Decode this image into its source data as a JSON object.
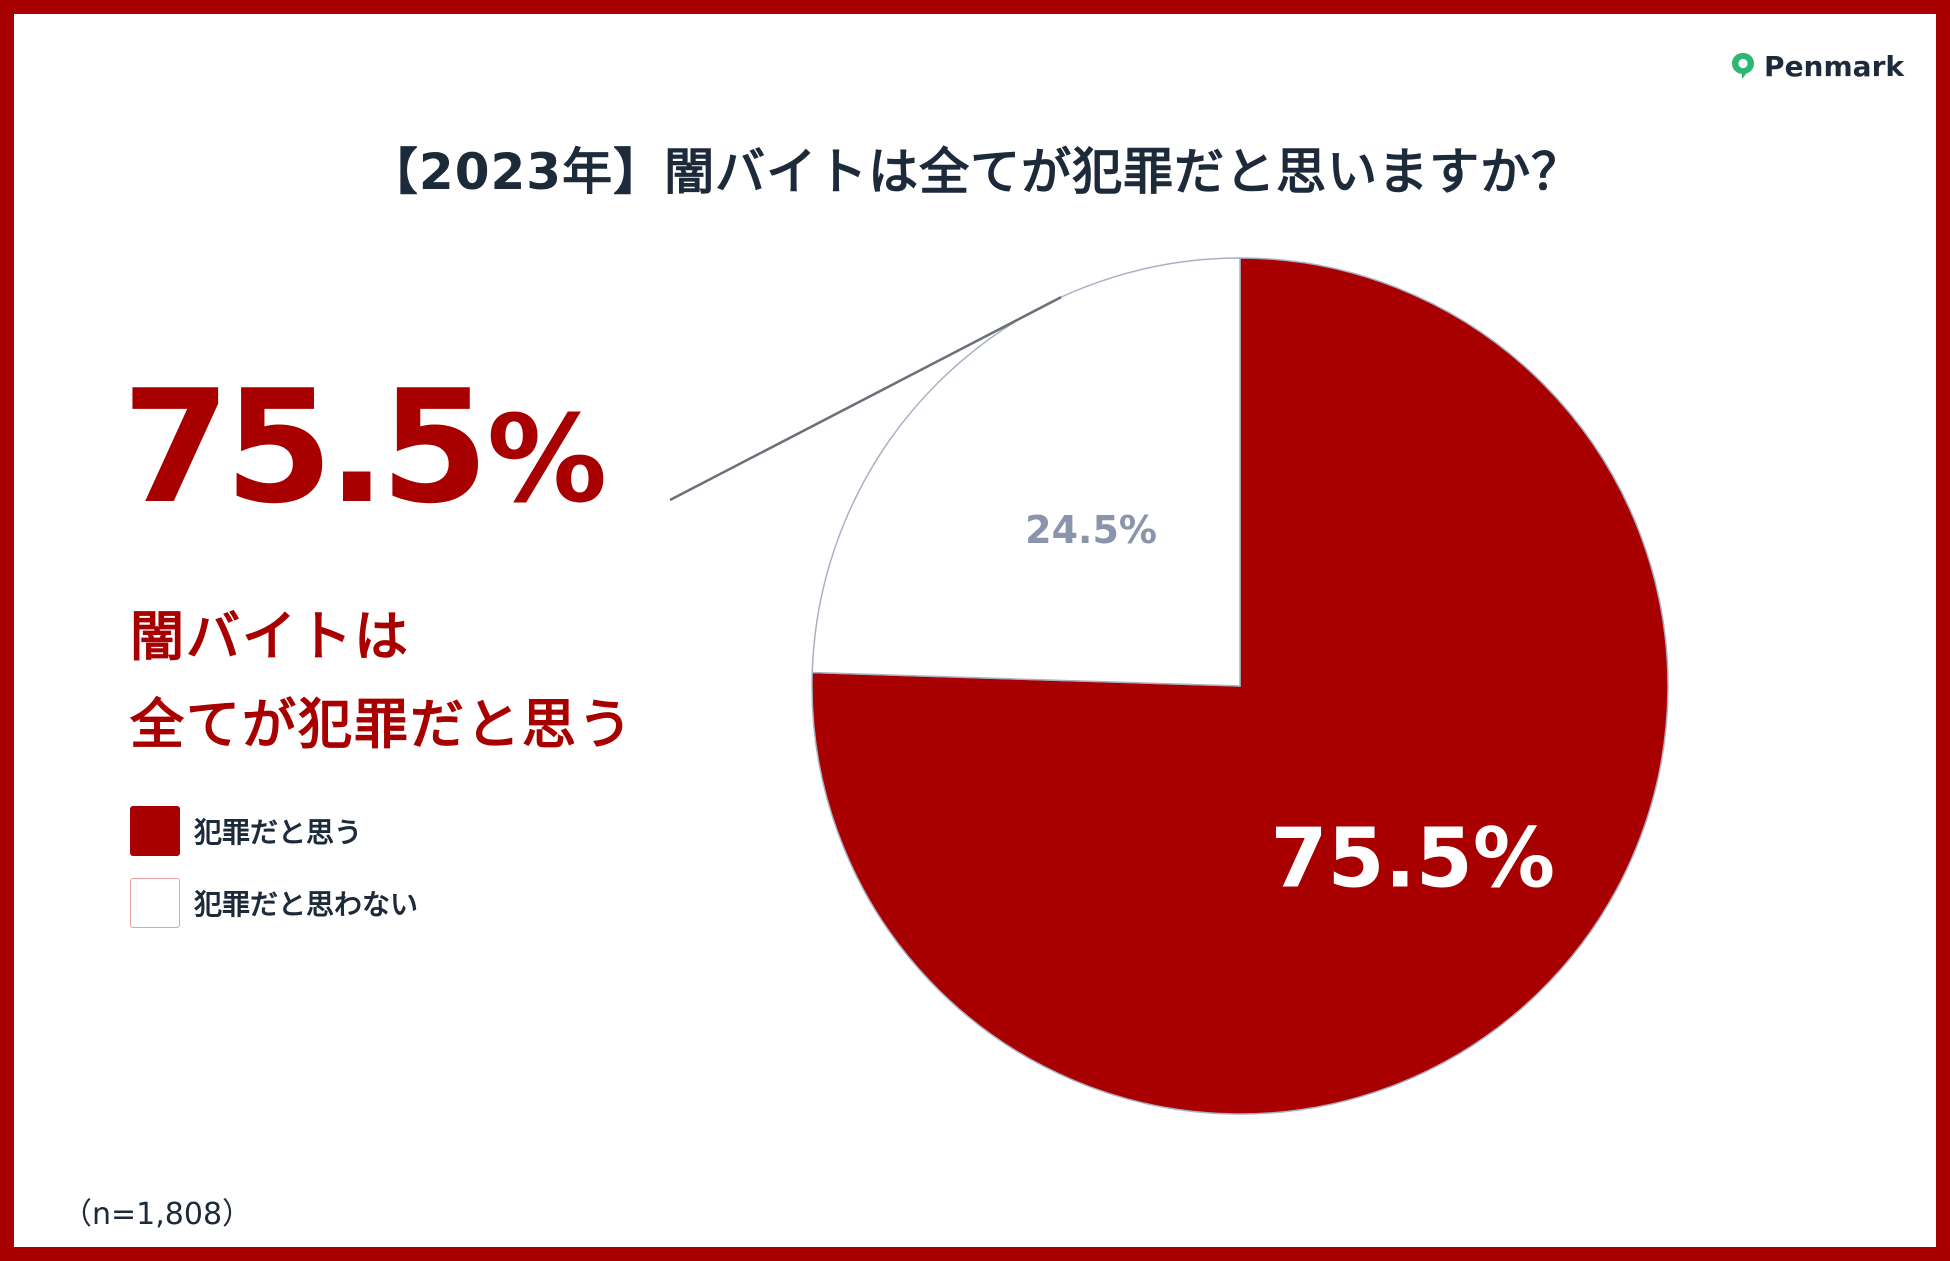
{
  "brand": {
    "name": "Penmark",
    "accent": "#2bb673"
  },
  "title": "【2023年】闇バイトは全てが犯罪だと思いますか？",
  "callout": {
    "value": "75.5",
    "unit": "%",
    "line1": "闇バイトは",
    "line2": "全てが犯罪だと思う"
  },
  "legend": [
    {
      "label": "犯罪だと思う",
      "color": "#a80000"
    },
    {
      "label": "犯罪だと思わない",
      "color": "#ffffff"
    }
  ],
  "sample_note": "（n=1,808）",
  "colors": {
    "primary": "#a80000",
    "text": "#1d2a3a",
    "slice_border": "#a8b0c4",
    "minor_label": "#8a94aa"
  },
  "chart_data": {
    "type": "pie",
    "categories": [
      "犯罪だと思う",
      "犯罪だと思わない"
    ],
    "values": [
      75.5,
      24.5
    ],
    "labels": [
      "75.5%",
      "24.5%"
    ],
    "colors": [
      "#a80000",
      "#ffffff"
    ],
    "legend_position": "left"
  }
}
